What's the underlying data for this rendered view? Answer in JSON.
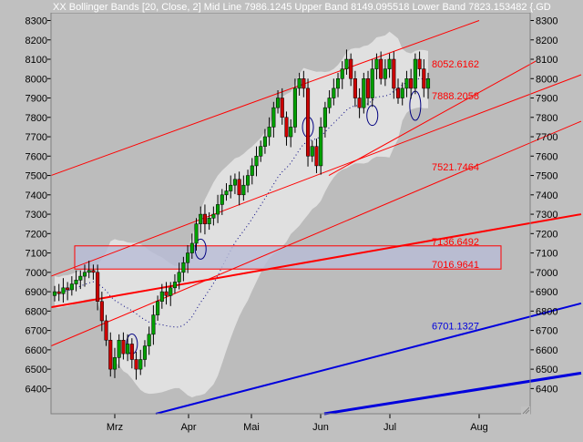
{
  "header": {
    "title": "XX Bollinger Bands [20, Close, 2] Mid Line 7986.1245  Upper Band 8149.095518  Lower Band 7823.153482  {.GD"
  },
  "colors": {
    "background": "#c0c0c0",
    "plot_area": "#bcbcbc",
    "band_fill": "#e0e0e0",
    "up_candle": "#00a000",
    "down_candle": "#cc0000",
    "trendline_red": "#ff0000",
    "trendline_blue": "#0000dd",
    "zone_fill": "#b8bcd6",
    "header_text": "#ffffff",
    "axis_text": "#000000"
  },
  "chart_data": {
    "type": "candlestick",
    "indicator": "Bollinger Bands [20, Close, 2]",
    "mid_line": 7986.1245,
    "upper_band": 8149.095518,
    "lower_band": 7823.153482,
    "x_ticks": [
      "Mrz",
      "Apr",
      "Mai",
      "Jun",
      "Jul",
      "Aug"
    ],
    "y_ticks": [
      6400,
      6500,
      6600,
      6700,
      6800,
      6900,
      7000,
      7100,
      7200,
      7300,
      7400,
      7500,
      7600,
      7700,
      7800,
      7900,
      8000,
      8100,
      8200,
      8300
    ],
    "ylim": [
      6270,
      8340
    ],
    "grid": false,
    "annotations": [
      {
        "label": "8052.6162",
        "color": "#ff0000"
      },
      {
        "label": "7888.2058",
        "color": "#ff0000"
      },
      {
        "label": "7521.7464",
        "color": "#ff0000"
      },
      {
        "label": "7136.6492",
        "color": "#ff0000"
      },
      {
        "label": "7016.9641",
        "color": "#ff0000"
      },
      {
        "label": "6701.1327",
        "color": "#0000dd"
      }
    ],
    "horizontal_zone": {
      "from": 7016.9641,
      "to": 7136.6492
    },
    "closes": [
      6900,
      6890,
      6920,
      6910,
      6940,
      6960,
      6980,
      7000,
      7010,
      7000,
      6850,
      6750,
      6650,
      6500,
      6560,
      6650,
      6580,
      6630,
      6550,
      6500,
      6550,
      6620,
      6680,
      6780,
      6850,
      6900,
      6880,
      6920,
      6950,
      7000,
      7050,
      7100,
      7150,
      7250,
      7300,
      7250,
      7280,
      7300,
      7350,
      7400,
      7420,
      7450,
      7480,
      7400,
      7450,
      7500,
      7550,
      7600,
      7650,
      7700,
      7750,
      7850,
      7900,
      7800,
      7700,
      7750,
      7950,
      8000,
      7950,
      7600,
      7650,
      7550,
      7750,
      7850,
      7900,
      7950,
      8000,
      8050,
      8100,
      8000,
      7900,
      7850,
      8000,
      7900,
      8050,
      8100,
      8000,
      8050,
      8100,
      7950,
      7900,
      7950,
      8000,
      7950,
      8100,
      8050,
      7950,
      8000
    ]
  }
}
